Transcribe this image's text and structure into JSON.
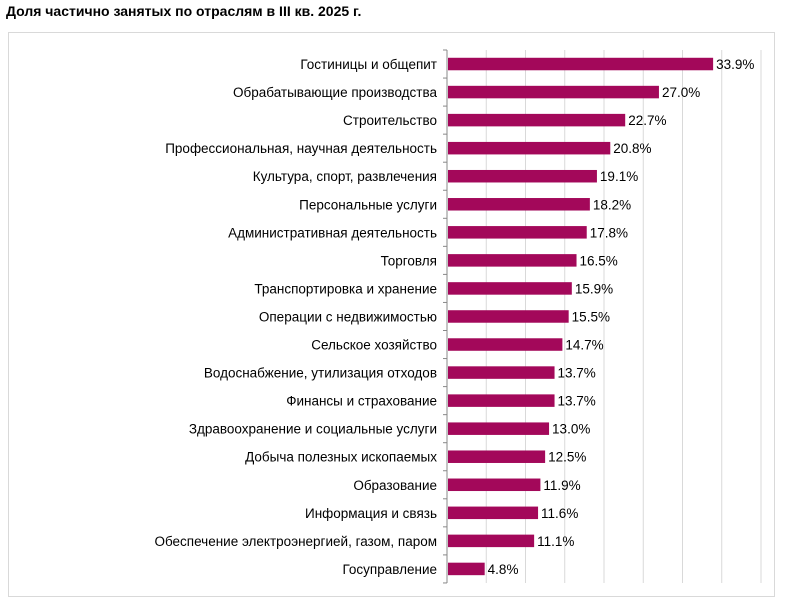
{
  "chart_data": {
    "type": "bar",
    "orientation": "horizontal",
    "title": "Доля частично занятых по отраслям в III кв. 2025 г.",
    "categories": [
      "Гостиницы и общепит",
      "Обрабатывающие производства",
      "Строительство",
      "Профессиональная, научная деятельность",
      "Культура, спорт, развлечения",
      "Персональные услуги",
      "Административная деятельность",
      "Торговля",
      "Транспортировка и хранение",
      "Операции с недвижимостью",
      "Сельское хозяйство",
      "Водоснабжение, утилизация отходов",
      "Финансы и страхование",
      "Здравоохранение и социальные услуги",
      "Добыча полезных ископаемых",
      "Образование",
      "Информация и связь",
      "Обеспечение электроэнергией, газом, паром",
      "Госуправление"
    ],
    "values": [
      33.9,
      27.0,
      22.7,
      20.8,
      19.1,
      18.2,
      17.8,
      16.5,
      15.9,
      15.5,
      14.7,
      13.7,
      13.7,
      13.0,
      12.5,
      11.9,
      11.6,
      11.1,
      4.8
    ],
    "labels": [
      "33.9%",
      "27.0%",
      "22.7%",
      "20.8%",
      "19.1%",
      "18.2%",
      "17.8%",
      "16.5%",
      "15.9%",
      "15.5%",
      "14.7%",
      "13.7%",
      "13.7%",
      "13.0%",
      "12.5%",
      "11.9%",
      "11.6%",
      "11.1%",
      "4.8%"
    ],
    "xlim": [
      0,
      40
    ],
    "grid": true,
    "bar_color": "#A3085A",
    "grid_color": "#d9d9d9"
  }
}
